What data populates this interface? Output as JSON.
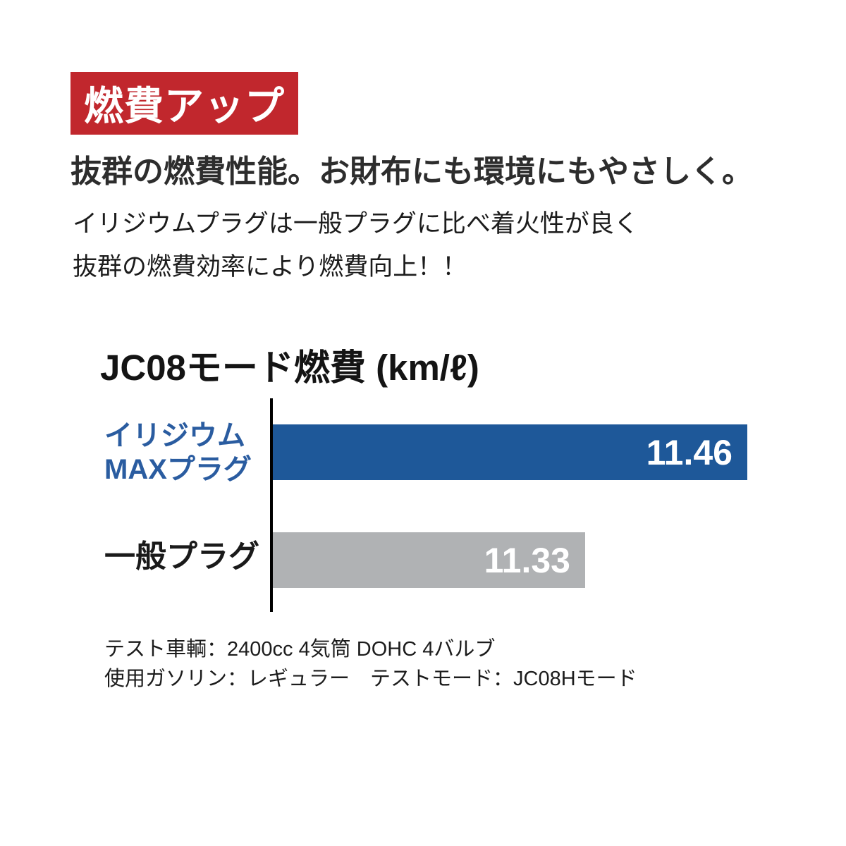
{
  "badge": {
    "label": "燃費アップ",
    "bg_color": "#c1272d",
    "text_color": "#ffffff"
  },
  "headline": "抜群の燃費性能。お財布にも環境にもやさしく。",
  "description_lines": [
    "イリジウムプラグは一般プラグに比べ着火性が良く",
    "抜群の燃費効率により燃費向上！！"
  ],
  "chart_data": {
    "type": "bar",
    "orientation": "horizontal",
    "title": "JC08モード燃費 (km/ℓ)",
    "value_unit": "km/ℓ",
    "xlim": [
      11.08,
      11.46
    ],
    "grid": false,
    "legend_position": "none",
    "axis_color": "#000000",
    "bars": [
      {
        "label_lines": [
          "イリジウム",
          "MAXプラグ"
        ],
        "value": 11.46,
        "value_label": "11.46",
        "bar_color": "#1e5899",
        "label_color": "#2a5ca0"
      },
      {
        "label_lines": [
          "一般プラグ"
        ],
        "value": 11.33,
        "value_label": "11.33",
        "bar_color": "#b0b2b4",
        "label_color": "#1a1a1a"
      }
    ]
  },
  "footnotes": [
    "テスト車輌：2400cc 4気筒 DOHC 4バルブ",
    "使用ガソリン：レギュラー　テストモード：JC08Hモード"
  ]
}
